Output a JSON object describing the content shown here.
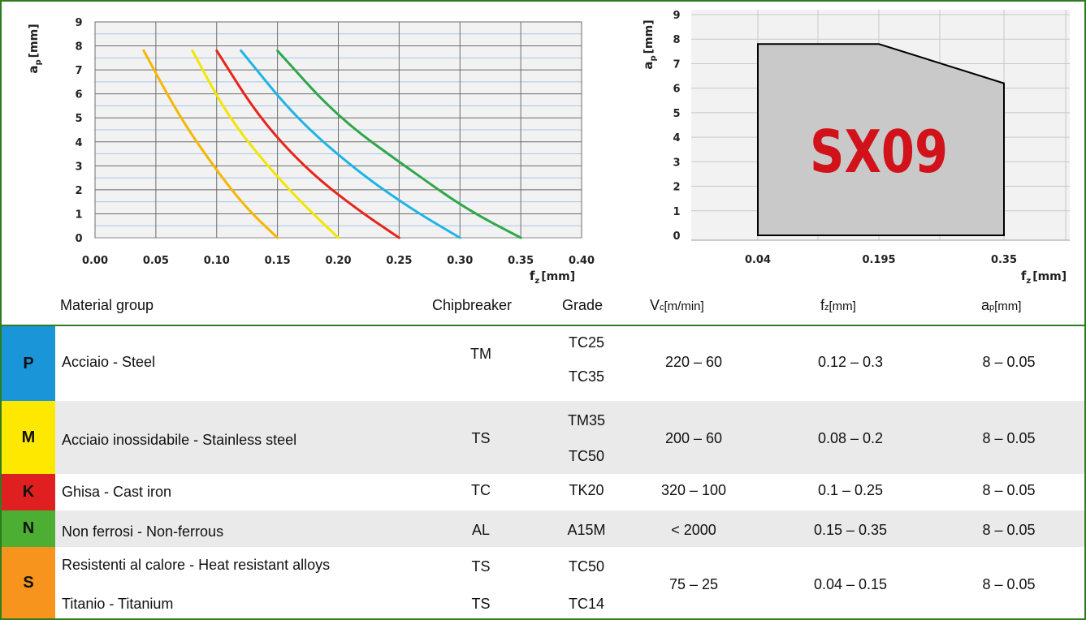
{
  "chart_data": [
    {
      "type": "line",
      "x": [
        0.0,
        0.05,
        0.1,
        0.15,
        0.2,
        0.25,
        0.3,
        0.35,
        0.4
      ],
      "xlabel": "f",
      "xlabel_sub": "z",
      "xlabel_unit": "[mm]",
      "ylabel": "a",
      "ylabel_sub": "p",
      "ylabel_unit": "[mm]",
      "xlim": [
        0,
        0.4
      ],
      "ylim": [
        0,
        9
      ],
      "grid": true,
      "xticks": [
        "0.00",
        "0.05",
        "0.10",
        "0.15",
        "0.20",
        "0.25",
        "0.30",
        "0.35",
        "0.40"
      ],
      "yticks": [
        "0",
        "1",
        "2",
        "3",
        "4",
        "5",
        "6",
        "7",
        "8",
        "9"
      ],
      "series": [
        {
          "color": "#f5b700",
          "points": [
            [
              0.04,
              7.8
            ],
            [
              0.07,
              5.0
            ],
            [
              0.1,
              2.8
            ],
            [
              0.125,
              1.2
            ],
            [
              0.15,
              0
            ]
          ]
        },
        {
          "color": "#f2e600",
          "points": [
            [
              0.08,
              7.8
            ],
            [
              0.11,
              5.0
            ],
            [
              0.145,
              2.8
            ],
            [
              0.175,
              1.2
            ],
            [
              0.2,
              0
            ]
          ]
        },
        {
          "color": "#e8241a",
          "points": [
            [
              0.1,
              7.8
            ],
            [
              0.135,
              5.0
            ],
            [
              0.175,
              2.8
            ],
            [
              0.215,
              1.2
            ],
            [
              0.25,
              0
            ]
          ]
        },
        {
          "color": "#1eb4e6",
          "points": [
            [
              0.12,
              7.8
            ],
            [
              0.165,
              5.0
            ],
            [
              0.215,
              2.8
            ],
            [
              0.26,
              1.2
            ],
            [
              0.3,
              0
            ]
          ]
        },
        {
          "color": "#2ea84a",
          "points": [
            [
              0.15,
              7.8
            ],
            [
              0.2,
              5.0
            ],
            [
              0.26,
              2.8
            ],
            [
              0.305,
              1.2
            ],
            [
              0.35,
              0
            ]
          ]
        }
      ]
    },
    {
      "type": "area",
      "title": "SX09",
      "xticks": [
        "0.04",
        "0.195",
        "0.35"
      ],
      "yticks": [
        "0",
        "1",
        "2",
        "3",
        "4",
        "5",
        "6",
        "7",
        "8",
        "9"
      ],
      "xlabel": "f",
      "xlabel_sub": "z",
      "xlabel_unit": "[mm]",
      "ylabel": "a",
      "ylabel_sub": "p",
      "ylabel_unit": "[mm]",
      "ylim": [
        0,
        9
      ],
      "polygon": [
        [
          0.04,
          0.0
        ],
        [
          0.04,
          7.8
        ],
        [
          0.195,
          7.8
        ],
        [
          0.35,
          6.2
        ],
        [
          0.35,
          0.0
        ]
      ],
      "fill": "#c9c9c9",
      "title_color": "#d1121a"
    }
  ],
  "table": {
    "headers": {
      "material": "Material group",
      "chipbreaker": "Chipbreaker",
      "grade": "Grade",
      "vc": "V",
      "vc_sub": "c",
      "vc_unit": "[m/min]",
      "fz": "f",
      "fz_sub": "z",
      "fz_unit": "[mm]",
      "ap": "a",
      "ap_sub": "p",
      "ap_unit": "[mm]"
    },
    "rows": [
      {
        "iso": "P",
        "color": "#1a96d8",
        "materials": [
          "Acciaio - Steel"
        ],
        "chipbreakers": [
          "TM"
        ],
        "grades": [
          "TC25",
          "TC35"
        ],
        "vc": "220 – 60",
        "fz": "0.12 – 0.3",
        "ap": "8 – 0.05"
      },
      {
        "iso": "M",
        "color": "#ffe800",
        "materials": [
          "Acciaio inossidabile - Stainless steel"
        ],
        "chipbreakers": [
          "TS"
        ],
        "grades": [
          "TM35",
          "TC50"
        ],
        "vc": "200 – 60",
        "fz": "0.08 – 0.2",
        "ap": "8 – 0.05"
      },
      {
        "iso": "K",
        "color": "#e02020",
        "materials": [
          "Ghisa - Cast iron"
        ],
        "chipbreakers": [
          "TC"
        ],
        "grades": [
          "TK20"
        ],
        "vc": "320 – 100",
        "fz": "0.1 – 0.25",
        "ap": "8 – 0.05"
      },
      {
        "iso": "N",
        "color": "#4caf34",
        "materials": [
          "Non ferrosi - Non-ferrous"
        ],
        "chipbreakers": [
          "AL"
        ],
        "grades": [
          "A15M"
        ],
        "vc": "< 2000",
        "fz": "0.15 – 0.35",
        "ap": "8 – 0.05"
      },
      {
        "iso": "S",
        "color": "#f7941d",
        "materials": [
          "Resistenti al calore - Heat resistant alloys",
          "Titanio - Titanium"
        ],
        "chipbreakers": [
          "TS",
          "TS"
        ],
        "grades": [
          "TC50",
          "TC14"
        ],
        "vc": "75 – 25",
        "fz": "0.04 – 0.15",
        "ap": "8 – 0.05"
      }
    ]
  }
}
